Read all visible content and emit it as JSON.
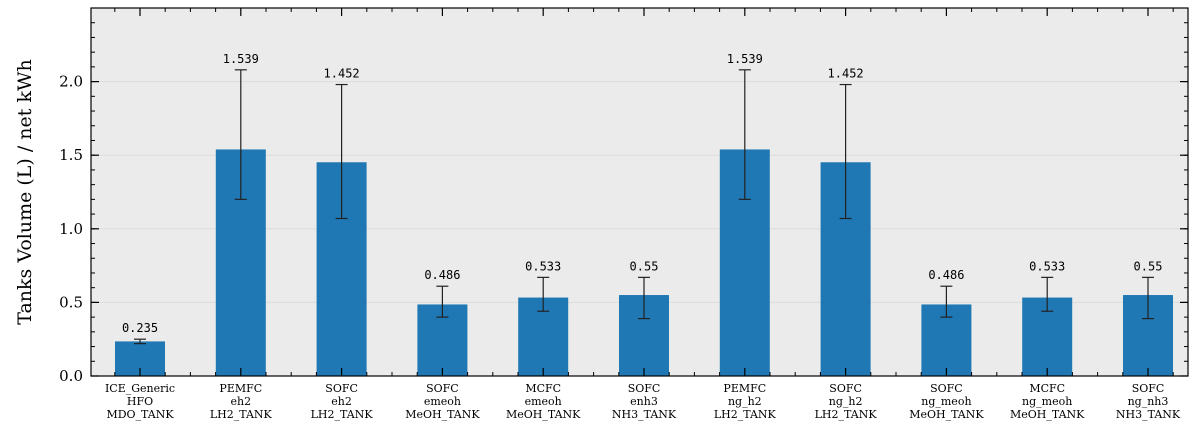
{
  "chart_data": {
    "type": "bar",
    "categories": [
      [
        "ICE_Generic",
        "HFO",
        "MDO_TANK"
      ],
      [
        "PEMFC",
        "eh2",
        "LH2_TANK"
      ],
      [
        "SOFC",
        "eh2",
        "LH2_TANK"
      ],
      [
        "SOFC",
        "emeoh",
        "MeOH_TANK"
      ],
      [
        "MCFC",
        "emeoh",
        "MeOH_TANK"
      ],
      [
        "SOFC",
        "enh3",
        "NH3_TANK"
      ],
      [
        "PEMFC",
        "ng_h2",
        "LH2_TANK"
      ],
      [
        "SOFC",
        "ng_h2",
        "LH2_TANK"
      ],
      [
        "SOFC",
        "ng_meoh",
        "MeOH_TANK"
      ],
      [
        "MCFC",
        "ng_meoh",
        "MeOH_TANK"
      ],
      [
        "SOFC",
        "ng_nh3",
        "NH3_TANK"
      ]
    ],
    "values": [
      0.235,
      1.539,
      1.452,
      0.486,
      0.533,
      0.55,
      1.539,
      1.452,
      0.486,
      0.533,
      0.55
    ],
    "value_labels": [
      "0.235",
      "1.539",
      "1.452",
      "0.486",
      "0.533",
      "0.55",
      "1.539",
      "1.452",
      "0.486",
      "0.533",
      "0.55"
    ],
    "error_low": [
      0.22,
      1.2,
      1.07,
      0.4,
      0.44,
      0.39,
      1.2,
      1.07,
      0.4,
      0.44,
      0.39
    ],
    "error_high": [
      0.25,
      2.08,
      1.98,
      0.61,
      0.67,
      0.67,
      2.08,
      1.98,
      0.61,
      0.67,
      0.67
    ],
    "ylabel": "Tanks Volume (L) / net kWh",
    "xlabel": "",
    "ylim": [
      0,
      2.5
    ],
    "yticks": [
      "0.0",
      "0.5",
      "1.0",
      "1.5",
      "2.0"
    ],
    "grid": "horizontal",
    "bar_color": "#1f77b4",
    "background_color": "#ebebeb"
  }
}
